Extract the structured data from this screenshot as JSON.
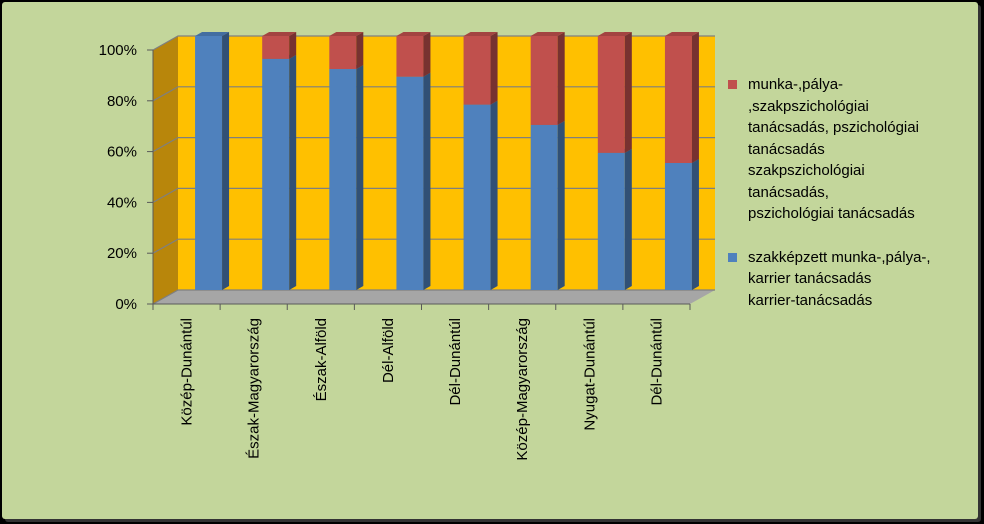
{
  "chart_data": {
    "type": "bar",
    "stacked": true,
    "percent": true,
    "categories": [
      "Közép-Dunántúl",
      "Észak-Magyarország",
      "Észak-Alföld",
      "Dél-Alföld",
      "Dél-Dunántúl",
      "Közép-Magyarország",
      "Nyugat-Dunántúl",
      "Dél-Dunántúl"
    ],
    "series": [
      {
        "name": "szakképzett munka-,pálya-,\nkarrier tanácsadás\nkarrier-tanácsadás",
        "color": "#4f81bd",
        "values": [
          100,
          91,
          87,
          84,
          73,
          65,
          54,
          50
        ]
      },
      {
        "name": "munka-,pálya-\n,szakpszichológiai\ntanácsadás, pszichológiai\ntanácsadás\nszakpszichológiai\ntanácsadás,\npszichológiai tanácsadás",
        "color": "#c0504d",
        "values": [
          0,
          9,
          13,
          16,
          27,
          35,
          46,
          50
        ]
      }
    ],
    "yticks": [
      "0%",
      "20%",
      "40%",
      "60%",
      "80%",
      "100%"
    ],
    "ylim": [
      0,
      100
    ],
    "colors": {
      "plot_back": "#ffc000",
      "plot_side": "#b8860b",
      "floor": "#a6a6a6",
      "gridline": "#7f7f7f"
    },
    "legend": "right"
  }
}
